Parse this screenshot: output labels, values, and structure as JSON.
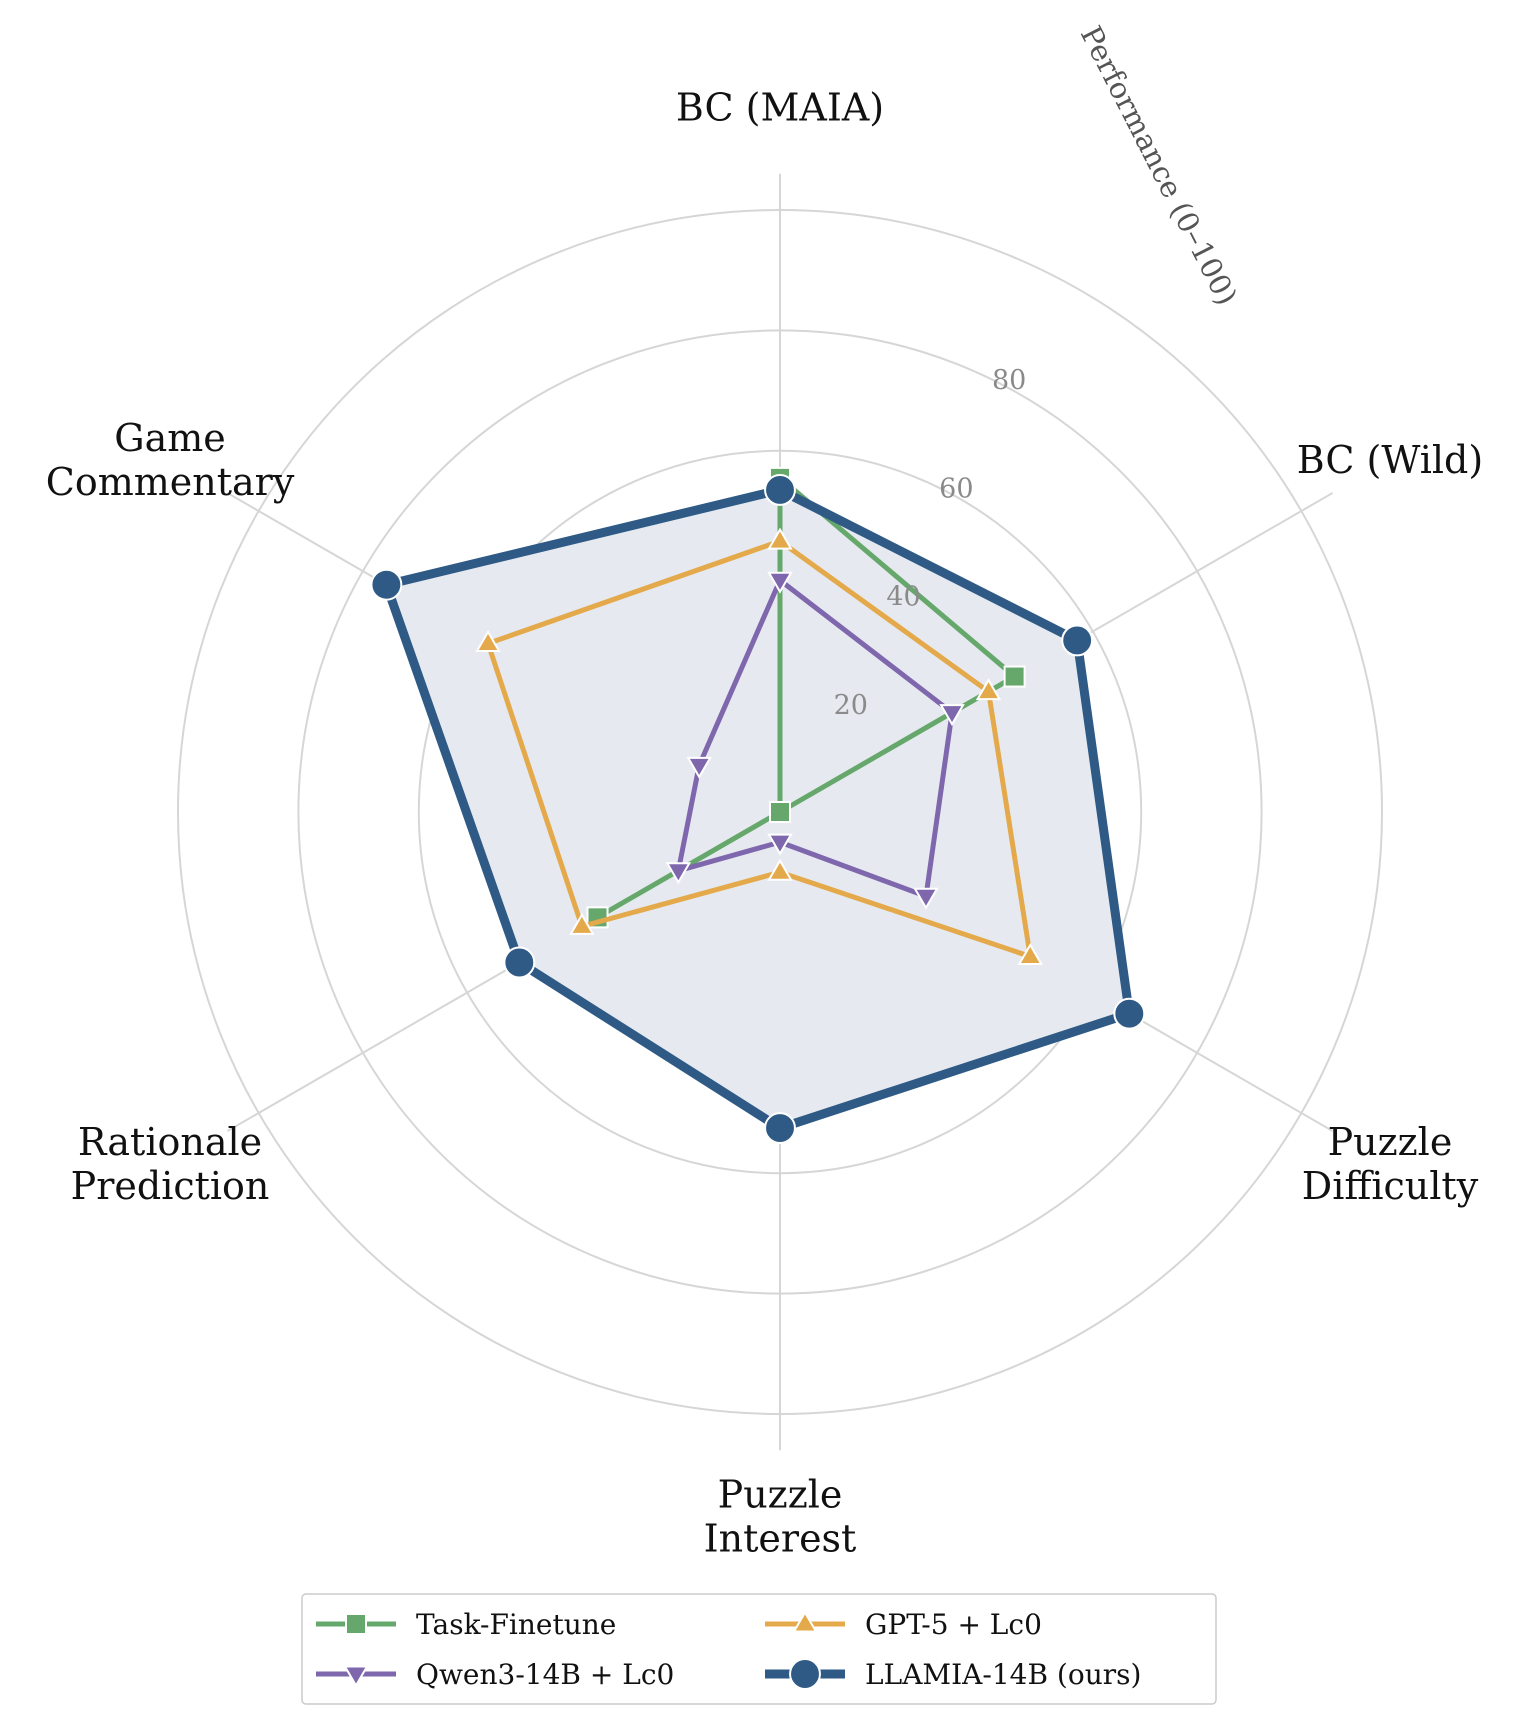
{
  "chart_data": {
    "type": "radar",
    "title": "",
    "radial_axis_label": "Performance (0–100)",
    "rmax": 100,
    "radial_ticks": [
      20,
      40,
      60,
      80
    ],
    "grid_rings": [
      20,
      40,
      60,
      80,
      100
    ],
    "grid": true,
    "legend_position": "bottom",
    "axes": [
      {
        "label_lines": [
          "BC (MAIA)"
        ]
      },
      {
        "label_lines": [
          "BC (Wild)"
        ]
      },
      {
        "label_lines": [
          "Puzzle",
          "Difficulty"
        ]
      },
      {
        "label_lines": [
          "Puzzle",
          "Interest"
        ]
      },
      {
        "label_lines": [
          "Rationale",
          "Prediction"
        ]
      },
      {
        "label_lines": [
          "Game",
          "Commentary"
        ]
      }
    ],
    "series": [
      {
        "name": "Task-Finetune",
        "color": "#66a86b",
        "marker": "square",
        "values": [
          55.5,
          45,
          0,
          0,
          35,
          0
        ]
      },
      {
        "name": "GPT-5 + Lc0",
        "color": "#e4a94b",
        "marker": "triangle-up",
        "values": [
          45,
          40,
          48,
          10,
          38,
          56
        ]
      },
      {
        "name": "Qwen3-14B + Lc0",
        "color": "#7e67ad",
        "marker": "triangle-down",
        "values": [
          38.5,
          33,
          28,
          5,
          19.5,
          15.5
        ]
      },
      {
        "name": "LLAMIA-14B (ours)",
        "color": "#2e5a85",
        "marker": "circle",
        "values": [
          53.5,
          57,
          67,
          52.5,
          50,
          75.5
        ]
      }
    ],
    "legend_order": [
      "Task-Finetune",
      "GPT-5 + Lc0",
      "Qwen3-14B + Lc0",
      "LLAMIA-14B (ours)"
    ],
    "fill_series": "LLAMIA-14B (ours)",
    "fill_color": "#e6eaf0",
    "grid_color": "#d6d6d6"
  }
}
